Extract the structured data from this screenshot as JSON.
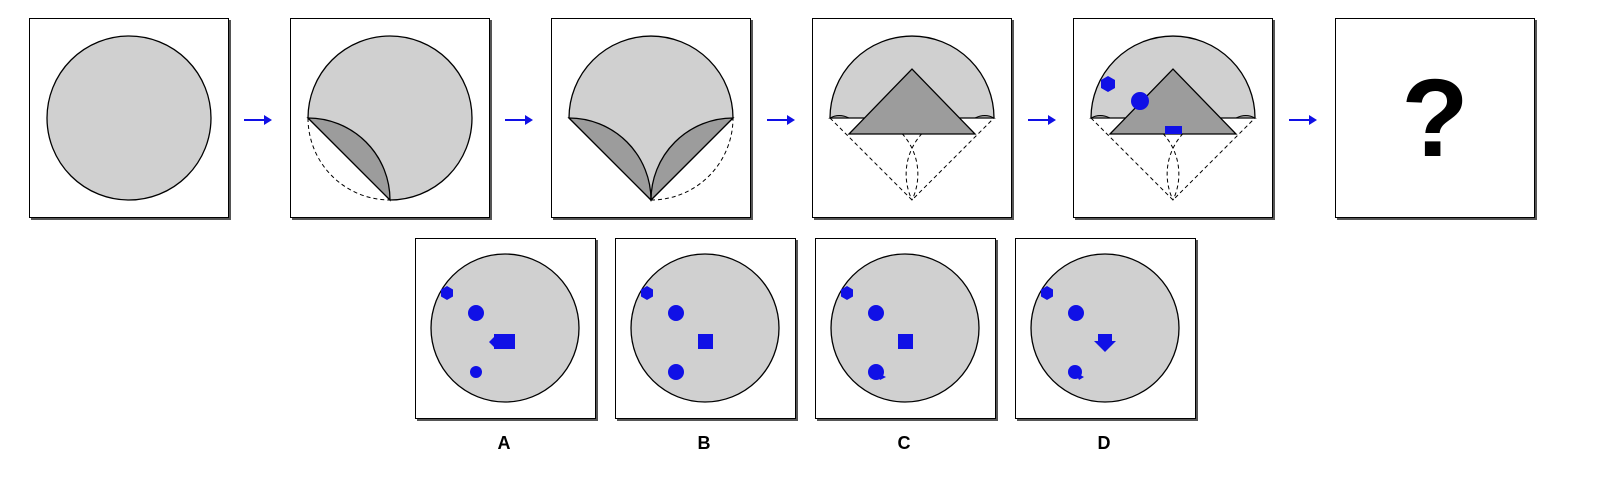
{
  "sequence": {
    "step_count": 6,
    "question_mark": "?"
  },
  "options": [
    {
      "label": "A"
    },
    {
      "label": "B"
    },
    {
      "label": "C"
    },
    {
      "label": "D"
    }
  ],
  "colors": {
    "paper": "#d0d0d0",
    "fold": "#9c9c9c",
    "marks": "#1010e6",
    "arrow": "#1010e6"
  },
  "icons": [
    "circle",
    "hexagon",
    "square",
    "pentagon-arrow",
    "arrow-right-icon"
  ]
}
